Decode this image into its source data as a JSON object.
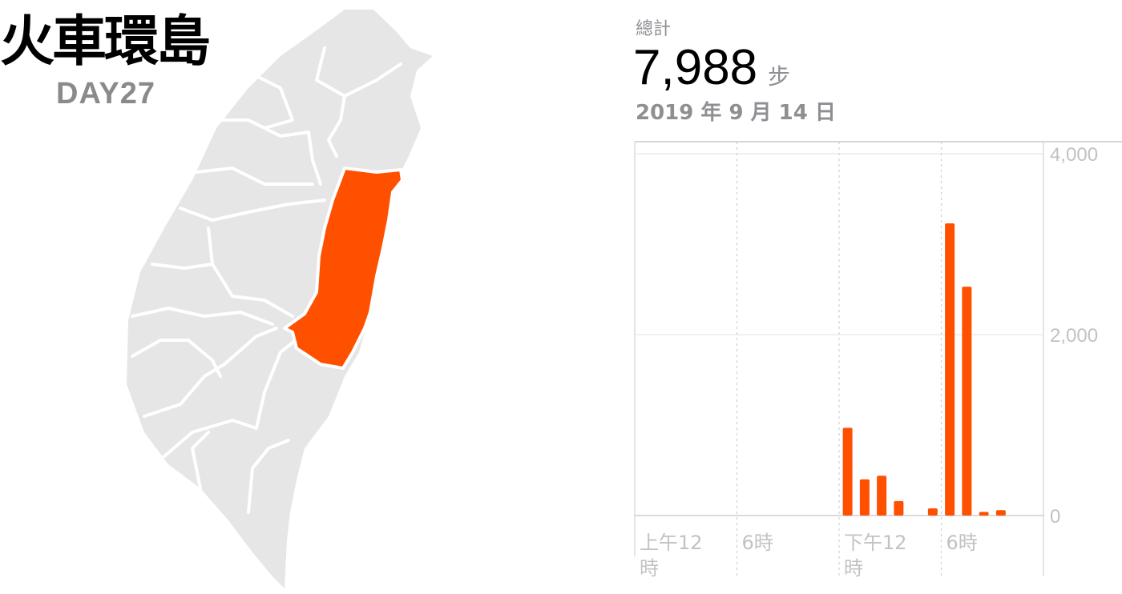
{
  "header": {
    "title": "火車環島",
    "day": "DAY27"
  },
  "map": {
    "base_color": "#e6e6e6",
    "border_color": "#ffffff",
    "highlight_color": "#ff5000",
    "highlighted_region": "花蓮"
  },
  "stats": {
    "label": "總計",
    "value": "7,988",
    "unit": "步",
    "date": "2019 年 9 月 14 日"
  },
  "chart_data": {
    "type": "bar",
    "bar_color": "#ff5000",
    "x_unit": "hour",
    "x_range": [
      0,
      24
    ],
    "x": [
      12,
      13,
      14,
      15,
      17,
      18,
      19,
      20,
      21
    ],
    "values": [
      970,
      400,
      440,
      160,
      80,
      3230,
      2530,
      40,
      60
    ],
    "ylim": [
      0,
      4000
    ],
    "y_ticks": [
      "0",
      "2,000",
      "4,000"
    ],
    "x_tick_labels": [
      {
        "hour": 0,
        "line1": "上午12",
        "line2": "時"
      },
      {
        "hour": 6,
        "line1": "6時",
        "line2": ""
      },
      {
        "hour": 12,
        "line1": "下午12",
        "line2": "時"
      },
      {
        "hour": 18,
        "line1": "6時",
        "line2": ""
      }
    ],
    "grid": true
  }
}
